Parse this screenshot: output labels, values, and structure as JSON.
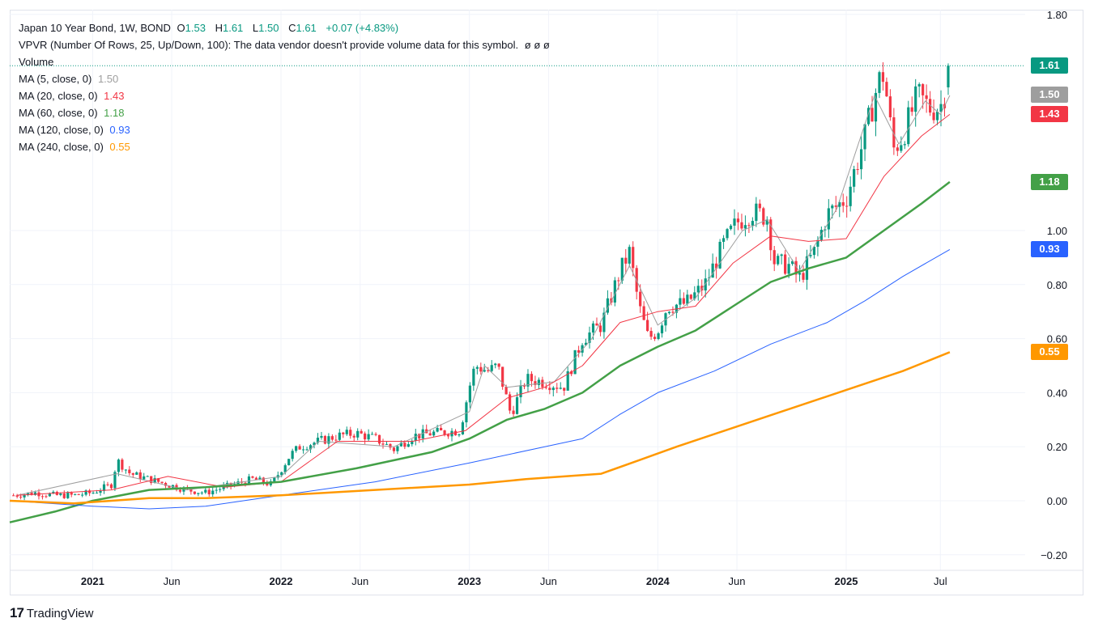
{
  "header": {
    "symbol_line": "Japan 10 Year Bond, 1W, BOND",
    "o_label": "O",
    "o_value": "1.53",
    "h_label": "H",
    "h_value": "1.61",
    "l_label": "L",
    "l_value": "1.50",
    "c_label": "C",
    "c_value": "1.61",
    "change": "+0.07 (+4.83%)",
    "vpvr_line": "VPVR (Number Of Rows, 25, Up/Down, 100): The data vendor doesn't provide volume data for this symbol.",
    "vpvr_empties": "ø ø ø",
    "volume_label": "Volume",
    "ma_rows": [
      {
        "label": "MA (5, close, 0)",
        "value": "1.50",
        "color": "#9e9e9e"
      },
      {
        "label": "MA (20, close, 0)",
        "value": "1.43",
        "color": "#f23645"
      },
      {
        "label": "MA (60, close, 0)",
        "value": "1.18",
        "color": "#43a047"
      },
      {
        "label": "MA (120, close, 0)",
        "value": "0.93",
        "color": "#2962ff"
      },
      {
        "label": "MA (240, close, 0)",
        "value": "0.55",
        "color": "#ff9800"
      }
    ]
  },
  "price_boxes": [
    {
      "label": "1.61",
      "value": 1.61,
      "color": "#089981"
    },
    {
      "label": "1.50",
      "value": 1.5,
      "color": "#9e9e9e"
    },
    {
      "label": "1.43",
      "value": 1.43,
      "color": "#f23645"
    },
    {
      "label": "1.18",
      "value": 1.18,
      "color": "#43a047"
    },
    {
      "label": "0.93",
      "value": 0.93,
      "color": "#2962ff"
    },
    {
      "label": "0.55",
      "value": 0.55,
      "color": "#ff9800"
    }
  ],
  "footer": {
    "brand": "TradingView",
    "logo_text": "17"
  },
  "colors": {
    "up": "#089981",
    "down": "#f23645",
    "grid": "#f0f3fa",
    "axis_text": "#131722"
  },
  "chart_data": {
    "type": "candlestick",
    "title": "Japan 10 Year Bond, 1W, BOND",
    "ylim": [
      -0.2,
      1.8
    ],
    "yticks": [
      "1.80",
      "1.00",
      "0.80",
      "0.60",
      "0.40",
      "0.20",
      "0.00",
      "−0.20"
    ],
    "ytick_values": [
      1.8,
      1.0,
      0.8,
      0.6,
      0.4,
      0.2,
      0.0,
      -0.2
    ],
    "xticks": [
      {
        "label": "2021",
        "t": 2021.0,
        "bold": true
      },
      {
        "label": "Jun",
        "t": 2021.42,
        "bold": false
      },
      {
        "label": "2022",
        "t": 2022.0,
        "bold": true
      },
      {
        "label": "Jun",
        "t": 2022.42,
        "bold": false
      },
      {
        "label": "2023",
        "t": 2023.0,
        "bold": true
      },
      {
        "label": "Jun",
        "t": 2023.42,
        "bold": false
      },
      {
        "label": "2024",
        "t": 2024.0,
        "bold": true
      },
      {
        "label": "Jun",
        "t": 2024.42,
        "bold": false
      },
      {
        "label": "2025",
        "t": 2025.0,
        "bold": true
      },
      {
        "label": "Jul",
        "t": 2025.5,
        "bold": false
      }
    ],
    "xlim": [
      2020.56,
      2025.95
    ],
    "last_close": 1.61,
    "close_path": [
      [
        2020.58,
        0.02
      ],
      [
        2020.7,
        0.03
      ],
      [
        2020.8,
        0.02
      ],
      [
        2020.9,
        0.02
      ],
      [
        2021.0,
        0.03
      ],
      [
        2021.1,
        0.06
      ],
      [
        2021.13,
        0.15
      ],
      [
        2021.2,
        0.1
      ],
      [
        2021.3,
        0.08
      ],
      [
        2021.4,
        0.06
      ],
      [
        2021.5,
        0.04
      ],
      [
        2021.6,
        0.03
      ],
      [
        2021.75,
        0.06
      ],
      [
        2021.85,
        0.08
      ],
      [
        2021.95,
        0.06
      ],
      [
        2022.05,
        0.17
      ],
      [
        2022.1,
        0.2
      ],
      [
        2022.2,
        0.22
      ],
      [
        2022.3,
        0.24
      ],
      [
        2022.4,
        0.25
      ],
      [
        2022.5,
        0.23
      ],
      [
        2022.6,
        0.19
      ],
      [
        2022.7,
        0.24
      ],
      [
        2022.8,
        0.25
      ],
      [
        2022.95,
        0.26
      ],
      [
        2023.0,
        0.42
      ],
      [
        2023.03,
        0.5
      ],
      [
        2023.1,
        0.48
      ],
      [
        2023.15,
        0.5
      ],
      [
        2023.22,
        0.32
      ],
      [
        2023.3,
        0.45
      ],
      [
        2023.4,
        0.44
      ],
      [
        2023.5,
        0.42
      ],
      [
        2023.6,
        0.6
      ],
      [
        2023.7,
        0.65
      ],
      [
        2023.8,
        0.85
      ],
      [
        2023.85,
        0.92
      ],
      [
        2023.9,
        0.72
      ],
      [
        2023.95,
        0.6
      ],
      [
        2024.0,
        0.63
      ],
      [
        2024.05,
        0.72
      ],
      [
        2024.15,
        0.73
      ],
      [
        2024.25,
        0.8
      ],
      [
        2024.35,
        0.95
      ],
      [
        2024.42,
        1.03
      ],
      [
        2024.5,
        1.07
      ],
      [
        2024.58,
        1.05
      ],
      [
        2024.62,
        0.88
      ],
      [
        2024.7,
        0.87
      ],
      [
        2024.75,
        0.82
      ],
      [
        2024.83,
        0.92
      ],
      [
        2024.9,
        1.06
      ],
      [
        2025.0,
        1.12
      ],
      [
        2025.1,
        1.35
      ],
      [
        2025.17,
        1.55
      ],
      [
        2025.2,
        1.58
      ],
      [
        2025.25,
        1.3
      ],
      [
        2025.3,
        1.35
      ],
      [
        2025.38,
        1.5
      ],
      [
        2025.45,
        1.45
      ],
      [
        2025.5,
        1.46
      ],
      [
        2025.55,
        1.57
      ]
    ],
    "series": [
      {
        "name": "MA (5, close, 0)",
        "color": "#9e9e9e",
        "width": 1,
        "points": [
          [
            2020.6,
            0.02
          ],
          [
            2021.13,
            0.1
          ],
          [
            2021.5,
            0.04
          ],
          [
            2022.0,
            0.09
          ],
          [
            2022.2,
            0.22
          ],
          [
            2022.6,
            0.2
          ],
          [
            2023.0,
            0.33
          ],
          [
            2023.08,
            0.5
          ],
          [
            2023.2,
            0.42
          ],
          [
            2023.45,
            0.44
          ],
          [
            2023.65,
            0.6
          ],
          [
            2023.85,
            0.87
          ],
          [
            2024.0,
            0.65
          ],
          [
            2024.2,
            0.75
          ],
          [
            2024.45,
            1.0
          ],
          [
            2024.58,
            1.04
          ],
          [
            2024.75,
            0.85
          ],
          [
            2024.95,
            1.08
          ],
          [
            2025.15,
            1.5
          ],
          [
            2025.28,
            1.32
          ],
          [
            2025.42,
            1.48
          ],
          [
            2025.5,
            1.43
          ],
          [
            2025.55,
            1.5
          ]
        ]
      },
      {
        "name": "MA (20, close, 0)",
        "color": "#f23645",
        "width": 1,
        "points": [
          [
            2020.6,
            0.02
          ],
          [
            2021.1,
            0.04
          ],
          [
            2021.4,
            0.09
          ],
          [
            2021.7,
            0.05
          ],
          [
            2022.0,
            0.07
          ],
          [
            2022.3,
            0.22
          ],
          [
            2022.7,
            0.22
          ],
          [
            2022.98,
            0.26
          ],
          [
            2023.2,
            0.38
          ],
          [
            2023.4,
            0.42
          ],
          [
            2023.6,
            0.5
          ],
          [
            2023.8,
            0.66
          ],
          [
            2024.0,
            0.7
          ],
          [
            2024.2,
            0.72
          ],
          [
            2024.4,
            0.88
          ],
          [
            2024.6,
            0.98
          ],
          [
            2024.8,
            0.96
          ],
          [
            2025.0,
            0.97
          ],
          [
            2025.2,
            1.2
          ],
          [
            2025.4,
            1.35
          ],
          [
            2025.55,
            1.43
          ]
        ]
      },
      {
        "name": "MA (60, close, 0)",
        "color": "#43a047",
        "width": 2.5,
        "points": [
          [
            2020.56,
            -0.08
          ],
          [
            2020.8,
            -0.04
          ],
          [
            2021.0,
            0.0
          ],
          [
            2021.3,
            0.04
          ],
          [
            2021.6,
            0.05
          ],
          [
            2022.0,
            0.07
          ],
          [
            2022.4,
            0.12
          ],
          [
            2022.8,
            0.18
          ],
          [
            2023.0,
            0.23
          ],
          [
            2023.2,
            0.3
          ],
          [
            2023.4,
            0.34
          ],
          [
            2023.6,
            0.4
          ],
          [
            2023.8,
            0.5
          ],
          [
            2024.0,
            0.57
          ],
          [
            2024.2,
            0.63
          ],
          [
            2024.4,
            0.72
          ],
          [
            2024.6,
            0.81
          ],
          [
            2024.8,
            0.86
          ],
          [
            2025.0,
            0.9
          ],
          [
            2025.2,
            1.0
          ],
          [
            2025.4,
            1.1
          ],
          [
            2025.55,
            1.18
          ]
        ]
      },
      {
        "name": "MA (120, close, 0)",
        "color": "#2962ff",
        "width": 1,
        "points": [
          [
            2020.56,
            0.0
          ],
          [
            2021.0,
            -0.02
          ],
          [
            2021.3,
            -0.03
          ],
          [
            2021.6,
            -0.02
          ],
          [
            2022.0,
            0.02
          ],
          [
            2022.5,
            0.07
          ],
          [
            2023.0,
            0.14
          ],
          [
            2023.4,
            0.2
          ],
          [
            2023.6,
            0.23
          ],
          [
            2023.8,
            0.32
          ],
          [
            2024.0,
            0.4
          ],
          [
            2024.3,
            0.48
          ],
          [
            2024.6,
            0.58
          ],
          [
            2024.9,
            0.66
          ],
          [
            2025.1,
            0.74
          ],
          [
            2025.3,
            0.83
          ],
          [
            2025.55,
            0.93
          ]
        ]
      },
      {
        "name": "MA (240, close, 0)",
        "color": "#ff9800",
        "width": 2.5,
        "points": [
          [
            2020.56,
            0.0
          ],
          [
            2020.9,
            -0.01
          ],
          [
            2021.3,
            0.01
          ],
          [
            2021.6,
            0.01
          ],
          [
            2022.0,
            0.02
          ],
          [
            2022.5,
            0.04
          ],
          [
            2023.0,
            0.06
          ],
          [
            2023.3,
            0.08
          ],
          [
            2023.7,
            0.1
          ],
          [
            2023.9,
            0.15
          ],
          [
            2024.1,
            0.2
          ],
          [
            2024.4,
            0.27
          ],
          [
            2024.7,
            0.34
          ],
          [
            2025.0,
            0.41
          ],
          [
            2025.3,
            0.48
          ],
          [
            2025.55,
            0.55
          ]
        ]
      }
    ]
  }
}
